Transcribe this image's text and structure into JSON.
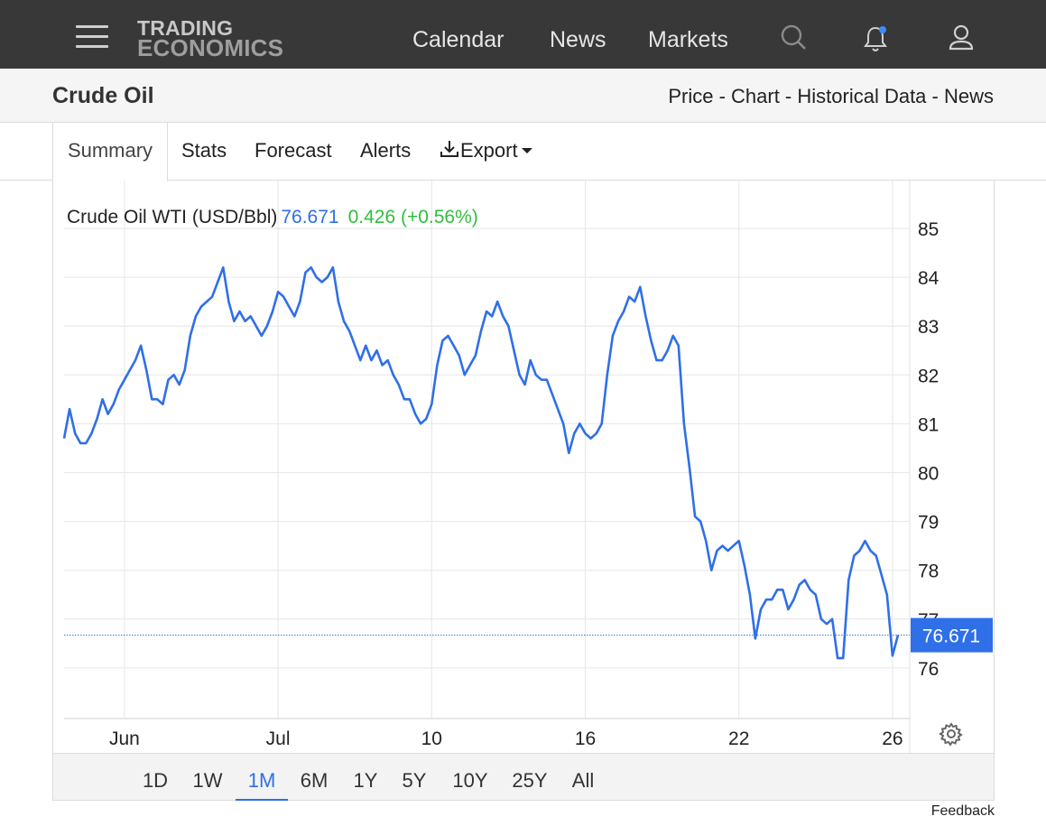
{
  "header": {
    "logo_line1": "TRADING",
    "logo_line2": "ECONOMICS",
    "nav": [
      "Calendar",
      "News",
      "Markets"
    ]
  },
  "subheader": {
    "title": "Crude Oil",
    "crumbs": [
      "Price",
      "Chart",
      "Historical Data",
      "News"
    ],
    "separator": " - "
  },
  "tabs": {
    "summary": "Summary",
    "stats": "Stats",
    "forecast": "Forecast",
    "alerts": "Alerts",
    "export": "Export"
  },
  "legend": {
    "name": "Crude Oil WTI (USD/Bbl)",
    "price": "76.671",
    "change": "0.426 (+0.56%)"
  },
  "periods": [
    "1D",
    "1W",
    "1M",
    "6M",
    "1Y",
    "5Y",
    "10Y",
    "25Y",
    "All"
  ],
  "active_period": "1M",
  "feedback": "Feedback",
  "colors": {
    "line": "#2f6fe8",
    "positive": "#2fbf3c",
    "header_bg": "#383838"
  },
  "chart_data": {
    "type": "line",
    "title": "Crude Oil WTI (USD/Bbl)",
    "ylim": [
      75,
      85.5
    ],
    "yticks": [
      76,
      77,
      78,
      79,
      80,
      81,
      82,
      83,
      84,
      85
    ],
    "xticks": [
      "Jun",
      "Jul",
      "10",
      "16",
      "22",
      "26"
    ],
    "xtick_index": [
      11,
      39,
      67,
      95,
      123,
      151
    ],
    "last_value": 76.671,
    "last_label": "76.671",
    "series": [
      {
        "values": [
          80.7,
          81.3,
          80.8,
          80.6,
          80.6,
          80.8,
          81.1,
          81.5,
          81.2,
          81.4,
          81.7,
          81.9,
          82.1,
          82.3,
          82.6,
          82.1,
          81.5,
          81.5,
          81.4,
          81.9,
          82.0,
          81.8,
          82.1,
          82.8,
          83.2,
          83.4,
          83.5,
          83.6,
          83.9,
          84.2,
          83.5,
          83.1,
          83.3,
          83.1,
          83.2,
          83.0,
          82.8,
          83.0,
          83.3,
          83.7,
          83.6,
          83.4,
          83.2,
          83.5,
          84.1,
          84.2,
          84.0,
          83.9,
          84.0,
          84.2,
          83.5,
          83.1,
          82.9,
          82.6,
          82.3,
          82.6,
          82.3,
          82.5,
          82.2,
          82.3,
          82.0,
          81.8,
          81.5,
          81.5,
          81.2,
          81.0,
          81.1,
          81.4,
          82.2,
          82.7,
          82.8,
          82.6,
          82.4,
          82.0,
          82.2,
          82.4,
          82.9,
          83.3,
          83.2,
          83.5,
          83.2,
          83.0,
          82.5,
          82.0,
          81.8,
          82.3,
          82.0,
          81.9,
          81.9,
          81.6,
          81.3,
          81.0,
          80.4,
          80.8,
          81.0,
          80.8,
          80.7,
          80.8,
          81.0,
          82.0,
          82.8,
          83.1,
          83.3,
          83.6,
          83.5,
          83.8,
          83.2,
          82.7,
          82.3,
          82.3,
          82.5,
          82.8,
          82.6,
          81.0,
          80.1,
          79.1,
          79.0,
          78.6,
          78.0,
          78.4,
          78.5,
          78.4,
          78.5,
          78.6,
          78.1,
          77.5,
          76.6,
          77.2,
          77.4,
          77.4,
          77.6,
          77.6,
          77.2,
          77.4,
          77.7,
          77.8,
          77.6,
          77.5,
          77.0,
          76.9,
          77.0,
          76.2,
          76.2,
          77.8,
          78.3,
          78.4,
          78.6,
          78.4,
          78.3,
          77.9,
          77.5,
          76.25,
          76.671
        ]
      }
    ]
  }
}
